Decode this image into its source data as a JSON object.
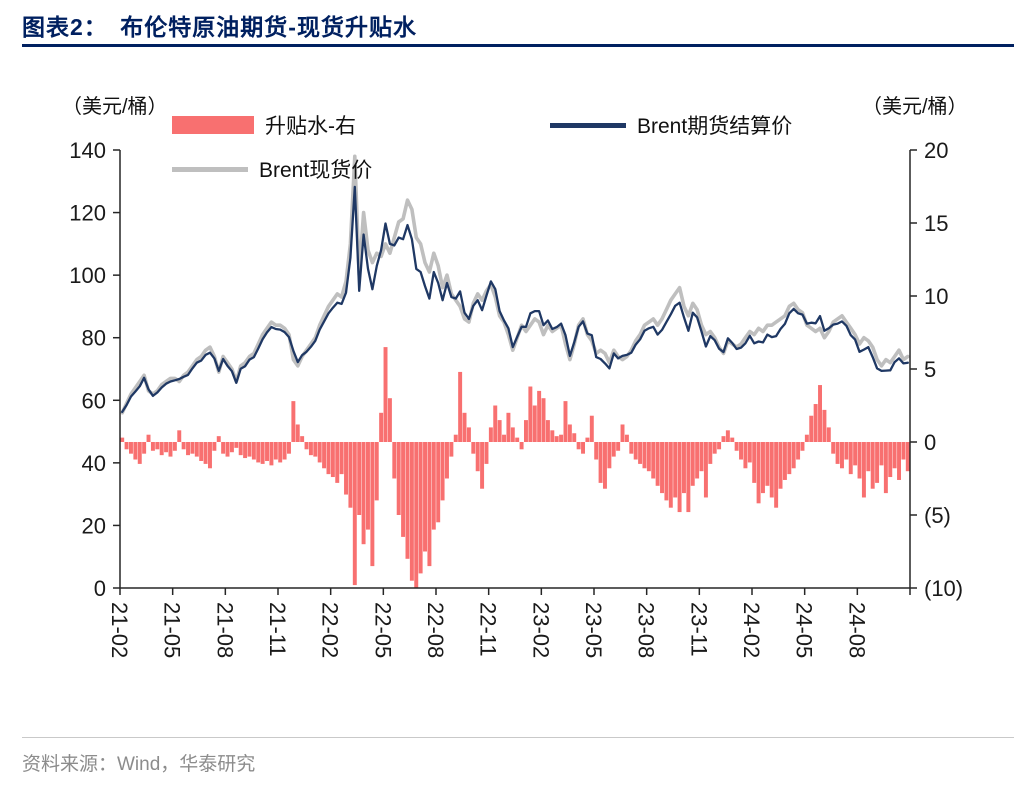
{
  "page": {
    "title": "图表2：　布伦特原油期货-现货升贴水",
    "source": "资料来源：Wind，华泰研究"
  },
  "colors": {
    "accent_navy": "#002060",
    "premium_fill": "#f87070",
    "futures_line": "#1f3864",
    "spot_line": "#bfbfbf"
  },
  "legend": [
    {
      "label": "升贴水-右",
      "type": "area",
      "color": "#f87070"
    },
    {
      "label": "Brent期货结算价",
      "type": "line",
      "color": "#1f3864"
    },
    {
      "label": "Brent现货价",
      "type": "line",
      "color": "#bfbfbf"
    }
  ],
  "axes": {
    "left_unit": "（美元/桶）",
    "right_unit": "（美元/桶）"
  },
  "chart_data": {
    "type": "combo",
    "title": "布伦特原油期货-现货升贴水",
    "axis_color": "#262626",
    "x_total_months": 45,
    "x_tick_month_step": 3,
    "points_per_month": 4,
    "x_range": {
      "start": "2021-02",
      "end": "2024-10"
    },
    "x_tick_labels": [
      "21-02",
      "21-05",
      "21-08",
      "21-11",
      "22-02",
      "22-05",
      "22-08",
      "22-11",
      "23-02",
      "23-05",
      "23-08",
      "23-11",
      "24-02",
      "24-05",
      "24-08"
    ],
    "left_axis": {
      "unit": "（美元/桶）",
      "min": 0,
      "max": 140,
      "tick_values": [
        0,
        20,
        40,
        60,
        80,
        100,
        120,
        140
      ],
      "tick_labels": [
        "0",
        "20",
        "40",
        "60",
        "80",
        "100",
        "120",
        "140"
      ]
    },
    "right_axis": {
      "unit": "（美元/桶）",
      "min": -10,
      "max": 20,
      "tick_values": [
        -10,
        -5,
        0,
        5,
        10,
        15,
        20
      ],
      "tick_labels": [
        "(10)",
        "(5)",
        "0",
        "5",
        "10",
        "15",
        "20"
      ]
    },
    "series": [
      {
        "id": "premium",
        "name": "升贴水-右",
        "type": "bar",
        "axis": "right",
        "color": "#f87070",
        "values": [
          0.3,
          -0.5,
          -0.8,
          -1.2,
          -1.5,
          -0.8,
          0.5,
          -0.6,
          -0.5,
          -0.9,
          -0.7,
          -1.0,
          -0.6,
          0.8,
          -0.5,
          -0.9,
          -0.8,
          -1.0,
          -1.3,
          -1.5,
          -1.8,
          -0.6,
          0.4,
          -0.8,
          -1.0,
          -0.7,
          -0.4,
          -0.9,
          -1.1,
          -1.0,
          -1.2,
          -1.4,
          -1.5,
          -1.3,
          -1.6,
          -1.2,
          -1.4,
          -1.2,
          -0.8,
          2.8,
          1.2,
          0.4,
          -0.5,
          -0.9,
          -1.0,
          -1.4,
          -1.8,
          -2.2,
          -2.4,
          -2.8,
          -2.2,
          -3.6,
          -4.5,
          -9.8,
          -5.0,
          -7.0,
          -6.0,
          -8.5,
          -4.0,
          2.0,
          6.5,
          3.0,
          -2.5,
          -5.0,
          -6.5,
          -8.0,
          -9.5,
          -10.0,
          -9.0,
          -7.5,
          -8.5,
          -6.0,
          -5.5,
          -4.0,
          -2.5,
          -1.0,
          0.5,
          4.8,
          2.0,
          1.0,
          -0.8,
          -2.0,
          -3.2,
          -1.5,
          1.0,
          2.5,
          1.5,
          0.5,
          2.0,
          1.0,
          0.3,
          -0.5,
          1.5,
          3.8,
          2.5,
          3.5,
          3.0,
          1.5,
          0.8,
          0.4,
          0.5,
          2.8,
          1.2,
          0.6,
          -0.5,
          -0.8,
          0.3,
          1.8,
          -1.2,
          -2.8,
          -3.2,
          -1.8,
          -1.0,
          -0.6,
          1.2,
          0.5,
          -0.8,
          -1.2,
          -1.5,
          -1.8,
          -2.0,
          -2.5,
          -3.0,
          -3.5,
          -4.0,
          -4.5,
          -3.8,
          -4.8,
          -3.5,
          -4.8,
          -3.0,
          -2.5,
          -2.0,
          -3.8,
          -1.5,
          -0.8,
          -0.5,
          0.4,
          0.8,
          0.3,
          -0.6,
          -1.2,
          -1.8,
          -1.4,
          -2.8,
          -4.2,
          -3.5,
          -3.0,
          -3.8,
          -4.5,
          -3.2,
          -2.6,
          -2.2,
          -1.8,
          -1.2,
          -0.6,
          0.5,
          1.8,
          2.6,
          3.9,
          2.2,
          1.0,
          -0.8,
          -1.5,
          -1.8,
          -1.2,
          -2.2,
          -1.6,
          -2.5,
          -3.8,
          -2.0,
          -3.2,
          -2.8,
          -1.6,
          -3.5,
          -2.4,
          -1.8,
          -2.6,
          -1.2,
          -2.0
        ]
      },
      {
        "id": "spot",
        "name": "Brent现货价",
        "type": "line",
        "axis": "left",
        "color": "#bfbfbf",
        "values": [
          56,
          59,
          62,
          64,
          66,
          68,
          63,
          62,
          63,
          65,
          66,
          67,
          67,
          66,
          68,
          69,
          71,
          73,
          74,
          76,
          77,
          74,
          69,
          74,
          72,
          70,
          66,
          71,
          72,
          74,
          75,
          78,
          81,
          83,
          85,
          84,
          84,
          83,
          81,
          73,
          71,
          74,
          76,
          78,
          80,
          84,
          87,
          90,
          92,
          94,
          93,
          98,
          110,
          138,
          100,
          120,
          108,
          104,
          107,
          106,
          110,
          107,
          112,
          117,
          118,
          124,
          121,
          112,
          110,
          104,
          101,
          107,
          103,
          96,
          100,
          94,
          92,
          90,
          86,
          85,
          91,
          94,
          92,
          95,
          97,
          93,
          87,
          85,
          81,
          76,
          80,
          84,
          82,
          84,
          86,
          85,
          81,
          84,
          82,
          83,
          84,
          78,
          73,
          78,
          84,
          86,
          81,
          79,
          75,
          76,
          75,
          72,
          76,
          74,
          73,
          74,
          76,
          79,
          81,
          84,
          85,
          86,
          84,
          86,
          89,
          92,
          94,
          96,
          90,
          87,
          91,
          89,
          84,
          81,
          82,
          80,
          77,
          75,
          79,
          78,
          77,
          78,
          80,
          82,
          81,
          83,
          82,
          84,
          84,
          85,
          86,
          87,
          90,
          91,
          89,
          88,
          84,
          83,
          82,
          83,
          80,
          82,
          85,
          86,
          87,
          85,
          83,
          81,
          78,
          80,
          79,
          77,
          73,
          71,
          73,
          72,
          74,
          76,
          73,
          74
        ]
      },
      {
        "id": "futures",
        "name": "Brent期货结算价",
        "type": "line",
        "axis": "left",
        "color": "#1f3864",
        "values": [
          56.3,
          58.5,
          61.2,
          62.8,
          64.5,
          67.2,
          63.5,
          61.4,
          62.5,
          64.1,
          65.3,
          66.0,
          66.4,
          66.8,
          67.5,
          68.1,
          70.2,
          72.0,
          72.7,
          74.5,
          75.2,
          73.4,
          69.4,
          73.2,
          71.0,
          69.3,
          65.6,
          70.1,
          70.9,
          73.0,
          73.8,
          76.6,
          79.5,
          81.7,
          83.4,
          82.8,
          82.6,
          81.8,
          80.2,
          75.8,
          72.2,
          74.4,
          75.5,
          77.1,
          79.0,
          82.6,
          85.2,
          87.8,
          89.6,
          91.2,
          90.8,
          94.4,
          105.5,
          128.2,
          95.0,
          113.0,
          102.0,
          95.5,
          103.0,
          108.0,
          116.5,
          110.0,
          109.5,
          112.0,
          111.5,
          116.0,
          111.5,
          102.0,
          101.0,
          96.5,
          92.5,
          101.0,
          97.5,
          92.0,
          97.5,
          93.0,
          92.5,
          94.8,
          88.0,
          86.0,
          90.2,
          92.0,
          88.8,
          93.5,
          98.0,
          95.5,
          88.5,
          85.5,
          83.0,
          77.0,
          80.3,
          83.5,
          83.5,
          87.8,
          88.5,
          88.5,
          84.0,
          85.5,
          82.8,
          83.4,
          84.5,
          80.8,
          74.2,
          78.6,
          83.5,
          85.2,
          81.3,
          80.8,
          73.8,
          73.2,
          71.8,
          70.2,
          75.0,
          73.4,
          74.2,
          74.5,
          75.2,
          77.8,
          79.5,
          82.2,
          83.0,
          83.5,
          81.0,
          82.5,
          85.0,
          87.5,
          90.2,
          91.2,
          86.5,
          82.2,
          88.0,
          86.5,
          82.0,
          77.2,
          80.5,
          79.2,
          76.5,
          75.4,
          79.8,
          78.3,
          76.4,
          76.8,
          78.2,
          80.6,
          78.2,
          78.8,
          78.5,
          81.0,
          80.2,
          80.5,
          82.8,
          84.4,
          87.8,
          89.2,
          87.8,
          87.4,
          84.5,
          84.8,
          84.6,
          86.9,
          82.2,
          83.0,
          84.2,
          84.5,
          85.2,
          83.8,
          80.8,
          79.4,
          75.5,
          76.2,
          77.0,
          73.8,
          70.2,
          69.4,
          69.5,
          69.6,
          72.2,
          73.4,
          71.8,
          72.0
        ]
      }
    ]
  }
}
